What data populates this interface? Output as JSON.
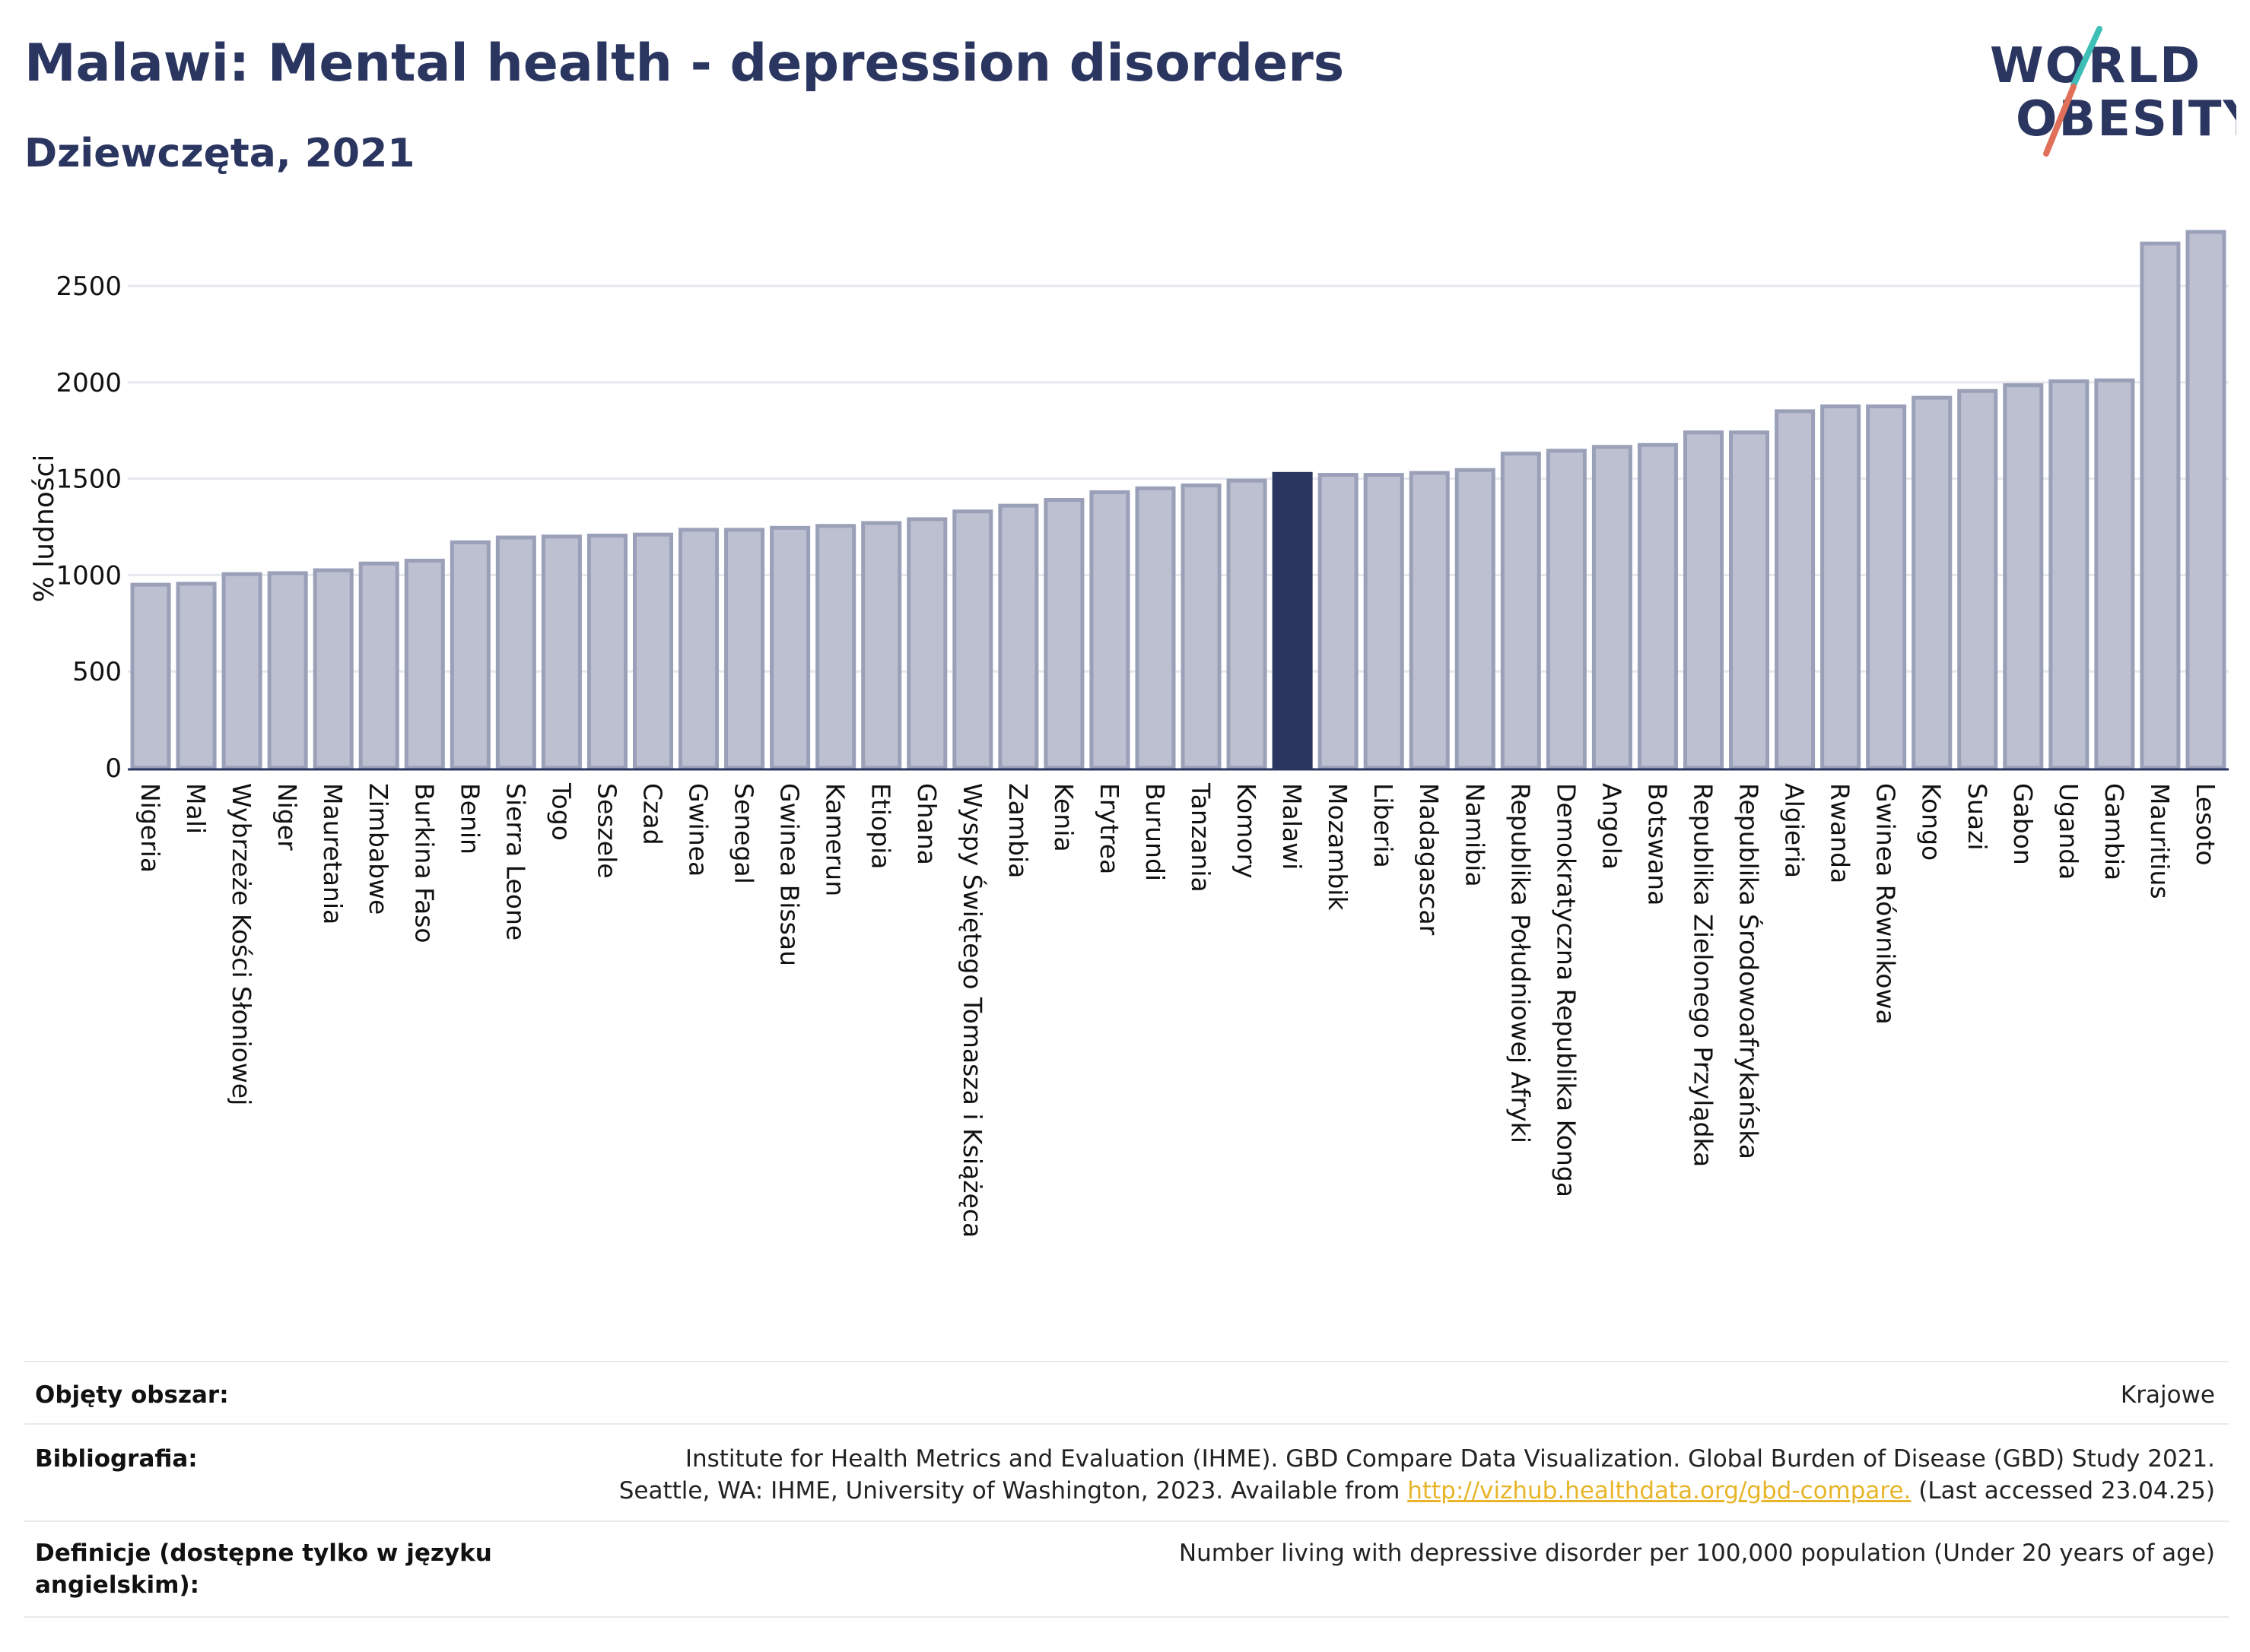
{
  "header": {
    "title": "Malawi: Mental health - depression disorders",
    "subtitle": "Dziewczęta, 2021",
    "logo_line1": "WORLD",
    "logo_line2": "OBESITY"
  },
  "colors": {
    "bar": "#bcc0d0",
    "bar_stroke": "#9aa0b8",
    "highlight": "#2a3560",
    "grid": "#e6e8ee",
    "text": "#2a3560",
    "logo_teal": "#3dbfb8",
    "logo_red": "#e0705a"
  },
  "chart_data": {
    "type": "bar",
    "ylabel": "% ludności",
    "ylim": [
      0,
      2800
    ],
    "yticks": [
      0,
      500,
      1000,
      1500,
      2000,
      2500
    ],
    "grid": true,
    "highlight": "Malawi",
    "categories": [
      "Nigeria",
      "Mali",
      "Wybrzeże Kości Słoniowej",
      "Niger",
      "Mauretania",
      "Zimbabwe",
      "Burkina Faso",
      "Benin",
      "Sierra Leone",
      "Togo",
      "Seszele",
      "Czad",
      "Gwinea",
      "Senegal",
      "Gwinea Bissau",
      "Kamerun",
      "Etiopia",
      "Ghana",
      "Wyspy Świętego Tomasza i Książęca",
      "Zambia",
      "Kenia",
      "Erytrea",
      "Burundi",
      "Tanzania",
      "Komory",
      "Malawi",
      "Mozambik",
      "Liberia",
      "Madagascar",
      "Namibia",
      "Republika Południowej Afryki",
      "Demokratyczna Republika Konga",
      "Angola",
      "Botswana",
      "Republika Zielonego Przylądka",
      "Republika Środowoafrykańska",
      "Algieria",
      "Rwanda",
      "Gwinea Równikowa",
      "Kongo",
      "Suazi",
      "Gabon",
      "Uganda",
      "Gambia",
      "Mauritius",
      "Lesoto"
    ],
    "values": [
      950,
      955,
      1005,
      1010,
      1025,
      1060,
      1075,
      1170,
      1195,
      1200,
      1205,
      1210,
      1235,
      1235,
      1245,
      1255,
      1270,
      1290,
      1330,
      1360,
      1390,
      1430,
      1450,
      1465,
      1490,
      1525,
      1520,
      1520,
      1530,
      1545,
      1630,
      1645,
      1665,
      1675,
      1740,
      1740,
      1850,
      1875,
      1875,
      1920,
      1955,
      1985,
      2005,
      2010,
      2720,
      2780
    ]
  },
  "footer": {
    "coverage_label": "Objęty obszar:",
    "coverage_value": "Krajowe",
    "bibliography_label": "Bibliografia:",
    "bibliography_line1": "Institute for Health Metrics and Evaluation (IHME). GBD Compare Data Visualization. Global Burden of Disease (GBD) Study 2021.",
    "bibliography_line2_pre": "Seattle, WA: IHME, University of Washington, 2023. Available from ",
    "bibliography_link": "http://vizhub.healthdata.org/gbd-compare.",
    "bibliography_line2_post": " (Last accessed 23.04.25)",
    "definitions_label_line1": "Definicje (dostępne tylko w języku",
    "definitions_label_line2": "angielskim):",
    "definitions_value": "Number living with depressive disorder per 100,000 population (Under 20 years of age)"
  }
}
